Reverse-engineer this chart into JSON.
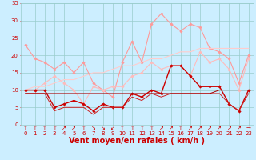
{
  "x": [
    0,
    1,
    2,
    3,
    4,
    5,
    6,
    7,
    8,
    9,
    10,
    11,
    12,
    13,
    14,
    15,
    16,
    17,
    18,
    19,
    20,
    21,
    22,
    23
  ],
  "series": [
    {
      "name": "rafales_pink",
      "color": "#ff9999",
      "linewidth": 0.8,
      "marker": "D",
      "markersize": 1.8,
      "values": [
        23,
        19,
        18,
        16,
        18,
        15,
        18,
        12,
        10,
        8,
        18,
        24,
        18,
        29,
        32,
        29,
        27,
        29,
        28,
        22,
        21,
        19,
        12,
        20
      ]
    },
    {
      "name": "moyenne_pink",
      "color": "#ffbbbb",
      "linewidth": 0.8,
      "marker": "D",
      "markersize": 1.8,
      "values": [
        10,
        10,
        12,
        14,
        12,
        10,
        6,
        11,
        10,
        11,
        11,
        14,
        15,
        18,
        16,
        17,
        17,
        14,
        21,
        18,
        19,
        16,
        10,
        19
      ]
    },
    {
      "name": "trend_light",
      "color": "#ffcccc",
      "linewidth": 0.8,
      "marker": null,
      "markersize": 0,
      "values": [
        10,
        11,
        11,
        12,
        13,
        13,
        14,
        15,
        15,
        16,
        17,
        17,
        18,
        19,
        19,
        20,
        21,
        21,
        22,
        22,
        22,
        22,
        22,
        22
      ]
    },
    {
      "name": "vent_moyen_dark",
      "color": "#cc0000",
      "linewidth": 1.0,
      "marker": "D",
      "markersize": 1.8,
      "values": [
        10,
        10,
        10,
        5,
        6,
        7,
        6,
        4,
        6,
        5,
        5,
        9,
        8,
        10,
        9,
        17,
        17,
        14,
        11,
        11,
        11,
        6,
        4,
        10
      ]
    },
    {
      "name": "vent_min_dark",
      "color": "#cc2222",
      "linewidth": 0.7,
      "marker": null,
      "markersize": 0,
      "values": [
        9,
        9,
        9,
        4,
        5,
        5,
        5,
        3,
        5,
        5,
        5,
        8,
        7,
        9,
        8,
        9,
        9,
        9,
        9,
        9,
        9,
        6,
        4,
        9
      ]
    },
    {
      "name": "trend_dark",
      "color": "#aa0000",
      "linewidth": 0.7,
      "marker": null,
      "markersize": 0,
      "values": [
        9,
        9,
        9,
        9,
        9,
        9,
        9,
        9,
        9,
        9,
        9,
        9,
        9,
        9,
        9,
        9,
        9,
        9,
        9,
        9,
        10,
        10,
        10,
        10
      ]
    }
  ],
  "xlabel": "Vent moyen/en rafales ( km/h )",
  "xlim": [
    -0.5,
    23.5
  ],
  "ylim": [
    0,
    35
  ],
  "yticks": [
    0,
    5,
    10,
    15,
    20,
    25,
    30,
    35
  ],
  "xticks": [
    0,
    1,
    2,
    3,
    4,
    5,
    6,
    7,
    8,
    9,
    10,
    11,
    12,
    13,
    14,
    15,
    16,
    17,
    18,
    19,
    20,
    21,
    22,
    23
  ],
  "bg_color": "#cceeff",
  "grid_color": "#99cccc",
  "tick_color": "#cc0000",
  "xlabel_color": "#cc0000",
  "xlabel_fontsize": 7,
  "tick_fontsize": 5,
  "arrow_symbols": [
    "↑",
    "↑",
    "↑",
    "↑",
    "↗",
    "↗",
    "↑",
    "↘",
    "↘",
    "↙",
    "↑",
    "↑",
    "↑",
    "↑",
    "↗",
    "↗",
    "↑",
    "↗",
    "↗",
    "↗",
    "↗",
    "↗",
    "↗",
    "→"
  ]
}
